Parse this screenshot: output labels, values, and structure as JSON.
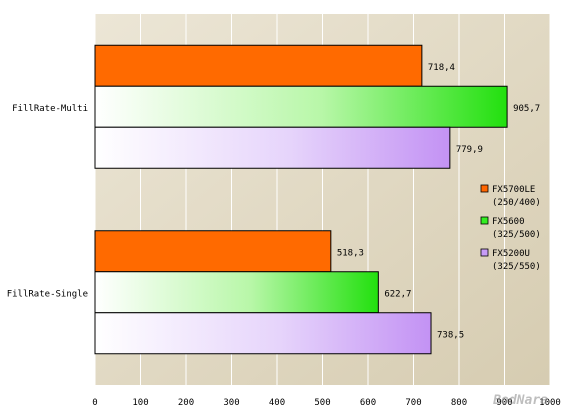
{
  "chart_data": {
    "type": "bar",
    "orientation": "horizontal",
    "categories": [
      "FillRate-Multi",
      "FillRate-Single"
    ],
    "series": [
      {
        "name": "FX5700LE",
        "name_line2": "(250/400)",
        "values": [
          718.4,
          518.3
        ],
        "labels": [
          "718,4",
          "518,3"
        ],
        "color": "#ff6600"
      },
      {
        "name": "FX5600",
        "name_line2": "(325/500)",
        "values": [
          905.7,
          622.7
        ],
        "labels": [
          "905,7",
          "622,7"
        ],
        "color": "#33ee22"
      },
      {
        "name": "FX5200U",
        "name_line2": "(325/550)",
        "values": [
          779.9,
          738.5
        ],
        "labels": [
          "779,9",
          "738,5"
        ],
        "color": "#c79cf6"
      }
    ],
    "xlim": [
      0,
      1000
    ],
    "xticks": [
      0,
      100,
      200,
      300,
      400,
      500,
      600,
      700,
      800,
      900,
      1000
    ],
    "grid": true,
    "legend_position": "right",
    "background_color": "#dcd3bc",
    "watermark": "BodNara"
  }
}
